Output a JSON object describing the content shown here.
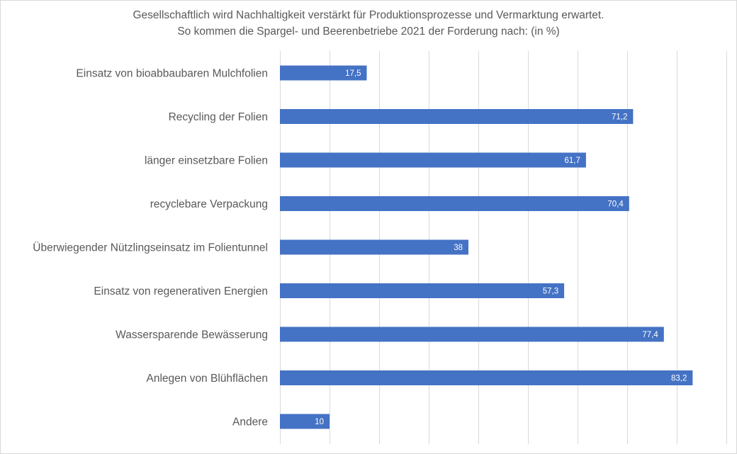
{
  "chart_data": {
    "type": "bar",
    "orientation": "horizontal",
    "title": "Gesellschaftlich wird Nachhaltigkeit verstärkt für Produktionsprozesse und Vermarktung erwartet.",
    "subtitle": "So kommen die Spargel- und Beerenbetriebe 2021 der Forderung nach: (in %)",
    "xlabel": "",
    "ylabel": "",
    "xlim": [
      0,
      90
    ],
    "grid_step": 10,
    "grid": true,
    "bar_color": "#4472C4",
    "categories": [
      "Einsatz von bioabbaubaren Mulchfolien",
      "Recycling der Folien",
      "länger einsetzbare Folien",
      "recyclebare Verpackung",
      "Überwiegender Nützlingseinsatz im Folientunnel",
      "Einsatz von regenerativen Energien",
      "Wassersparende Bewässerung",
      "Anlegen von Blühflächen",
      "Andere"
    ],
    "values": [
      17.5,
      71.2,
      61.7,
      70.4,
      38,
      57.3,
      77.4,
      83.2,
      10
    ],
    "value_labels": [
      "17,5",
      "71,2",
      "61,7",
      "70,4",
      "38",
      "57,3",
      "77,4",
      "83,2",
      "10"
    ]
  }
}
